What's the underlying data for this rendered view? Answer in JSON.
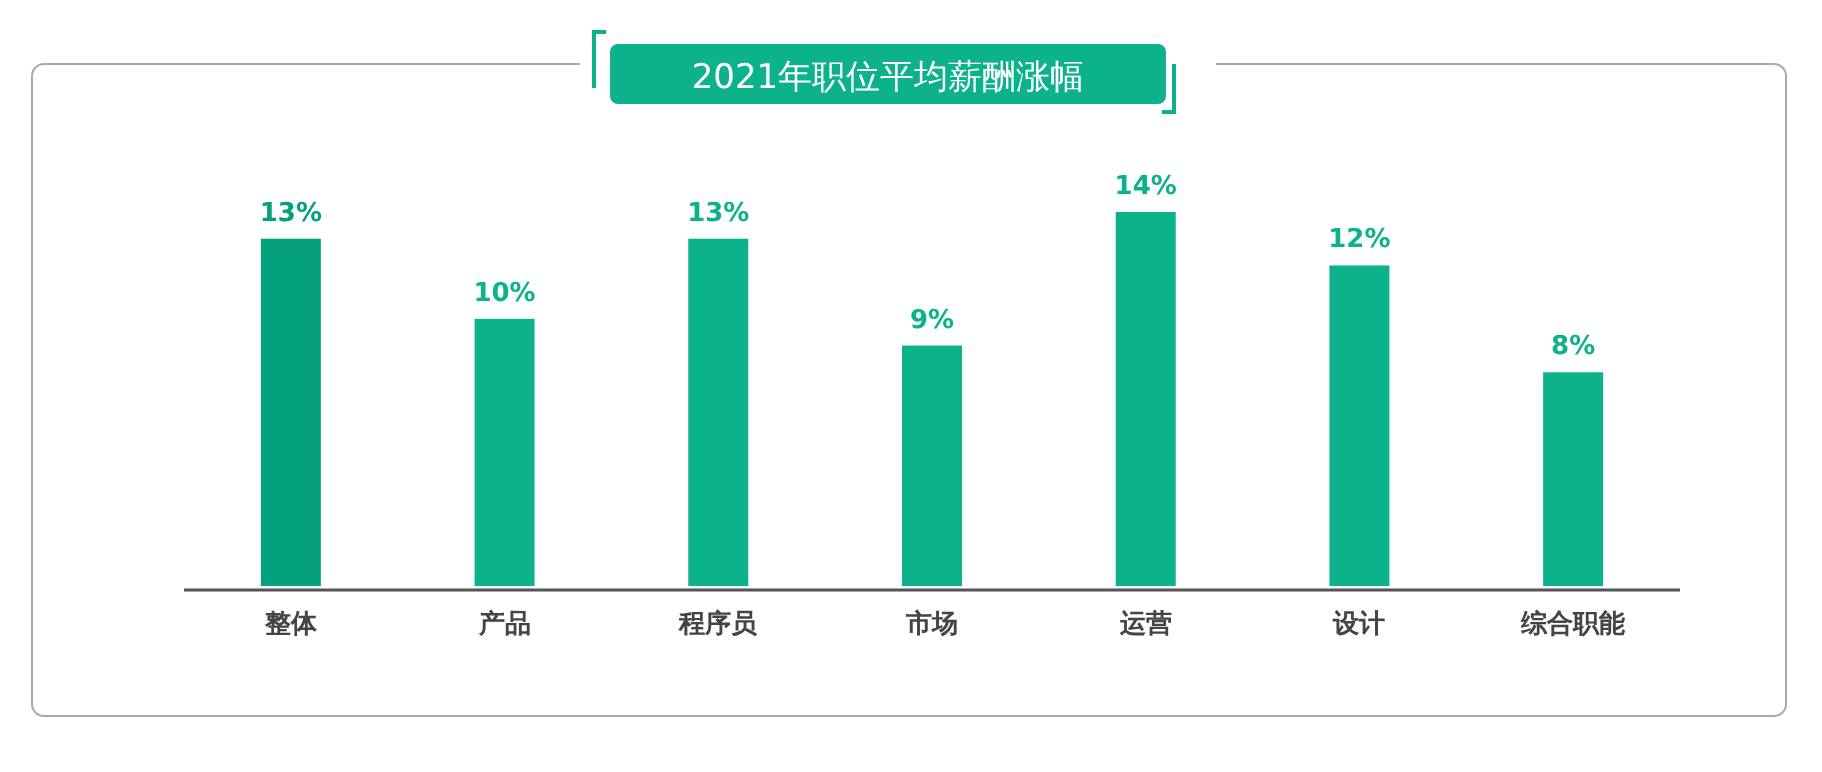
{
  "chart_data": {
    "type": "bar",
    "title": "2021年职位平均薪酬涨幅",
    "categories": [
      "整体",
      "产品",
      "程序员",
      "市场",
      "运营",
      "设计",
      "综合职能"
    ],
    "values": [
      13,
      10,
      13,
      9,
      14,
      12,
      8
    ],
    "colors": [
      "#05a07e",
      "#0bb28c",
      "#0bb28c",
      "#0bb28c",
      "#0bb28c",
      "#0bb28c",
      "#0bb28c"
    ],
    "value_labels": [
      "13%",
      "10%",
      "13%",
      "9%",
      "14%",
      "12%",
      "8%"
    ]
  }
}
